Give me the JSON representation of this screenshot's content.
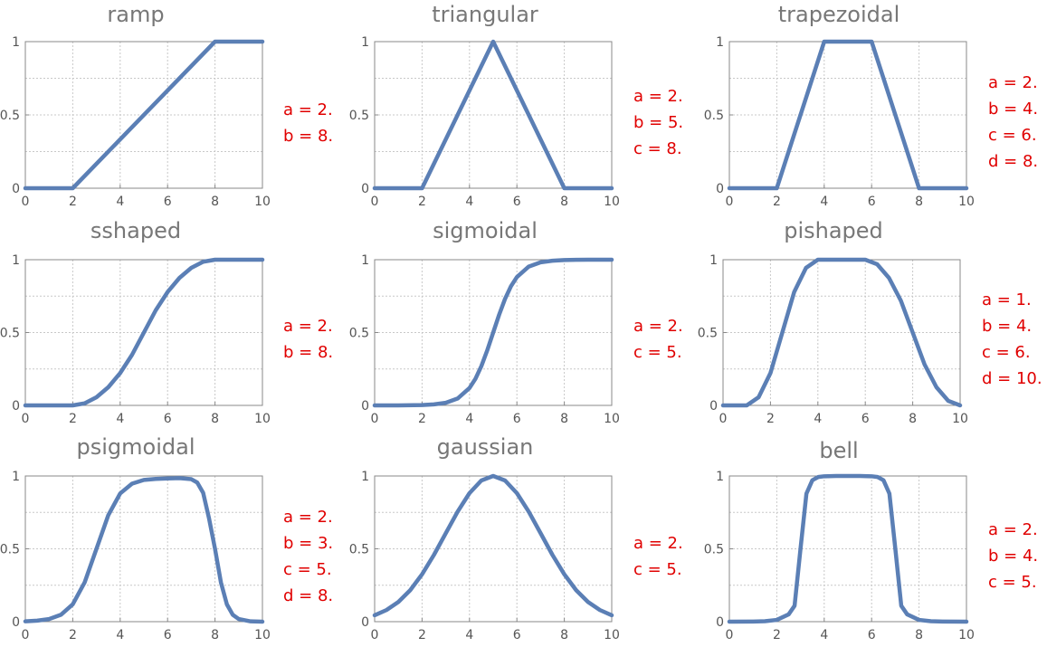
{
  "chart_data": [
    {
      "type": "line",
      "title": "ramp",
      "xlim": [
        0,
        10
      ],
      "ylim": [
        0,
        1
      ],
      "grid": true,
      "xticks": [
        "0",
        "2",
        "4",
        "6",
        "8",
        "10"
      ],
      "yticks": [
        "0",
        "0.5",
        "1"
      ],
      "series": [
        {
          "color": "#5b7fb5",
          "x": [
            0,
            2,
            8,
            10
          ],
          "y": [
            0,
            0,
            1,
            1
          ]
        }
      ],
      "params": [
        "a = 2.",
        "b = 8."
      ]
    },
    {
      "type": "line",
      "title": "triangular",
      "xlim": [
        0,
        10
      ],
      "ylim": [
        0,
        1
      ],
      "grid": true,
      "xticks": [
        "0",
        "2",
        "4",
        "6",
        "8",
        "10"
      ],
      "yticks": [
        "0",
        "0.5",
        "1"
      ],
      "series": [
        {
          "color": "#5b7fb5",
          "x": [
            0,
            2,
            5,
            8,
            10
          ],
          "y": [
            0,
            0,
            1,
            0,
            0
          ]
        }
      ],
      "params": [
        "a = 2.",
        "b = 5.",
        "c = 8."
      ]
    },
    {
      "type": "line",
      "title": "trapezoidal",
      "xlim": [
        0,
        10
      ],
      "ylim": [
        0,
        1
      ],
      "grid": true,
      "xticks": [
        "0",
        "2",
        "4",
        "6",
        "8",
        "10"
      ],
      "yticks": [
        "0",
        "0.5",
        "1"
      ],
      "series": [
        {
          "color": "#5b7fb5",
          "x": [
            0,
            2,
            4,
            6,
            8,
            10
          ],
          "y": [
            0,
            0,
            1,
            1,
            0,
            0
          ]
        }
      ],
      "params": [
        "a = 2.",
        "b = 4.",
        "c = 6.",
        "d = 8."
      ]
    },
    {
      "type": "line",
      "title": "sshaped",
      "xlim": [
        0,
        10
      ],
      "ylim": [
        0,
        1
      ],
      "grid": true,
      "xticks": [
        "0",
        "2",
        "4",
        "6",
        "8",
        "10"
      ],
      "yticks": [
        "0",
        "0.5",
        "1"
      ],
      "series": [
        {
          "color": "#5b7fb5",
          "x": [
            0,
            1,
            2,
            2.5,
            3,
            3.5,
            4,
            4.5,
            5,
            5.5,
            6,
            6.5,
            7,
            7.5,
            8,
            9,
            10
          ],
          "y": [
            0,
            0,
            0,
            0.014,
            0.056,
            0.125,
            0.222,
            0.347,
            0.5,
            0.653,
            0.778,
            0.875,
            0.944,
            0.986,
            1,
            1,
            1
          ]
        }
      ],
      "params": [
        "a = 2.",
        "b = 8."
      ]
    },
    {
      "type": "line",
      "title": "sigmoidal",
      "xlim": [
        0,
        10
      ],
      "ylim": [
        0,
        1
      ],
      "grid": true,
      "xticks": [
        "0",
        "2",
        "4",
        "6",
        "8",
        "10"
      ],
      "yticks": [
        "0",
        "0.5",
        "1"
      ],
      "series": [
        {
          "color": "#5b7fb5",
          "x": [
            0,
            1,
            2,
            2.5,
            3,
            3.5,
            4,
            4.25,
            4.5,
            4.75,
            5,
            5.25,
            5.5,
            5.75,
            6,
            6.5,
            7,
            7.5,
            8,
            9,
            10
          ],
          "y": [
            0,
            0,
            0.002,
            0.007,
            0.018,
            0.047,
            0.119,
            0.182,
            0.269,
            0.378,
            0.5,
            0.622,
            0.731,
            0.818,
            0.881,
            0.953,
            0.982,
            0.993,
            0.998,
            1,
            1
          ]
        }
      ],
      "params": [
        "a = 2.",
        "c = 5."
      ]
    },
    {
      "type": "line",
      "title": "pishaped",
      "xlim": [
        0,
        10
      ],
      "ylim": [
        0,
        1
      ],
      "grid": true,
      "xticks": [
        "0",
        "2",
        "4",
        "6",
        "8",
        "10"
      ],
      "yticks": [
        "0",
        "0.5",
        "1"
      ],
      "series": [
        {
          "color": "#5b7fb5",
          "x": [
            0,
            1,
            1.5,
            2,
            2.5,
            3,
            3.5,
            4,
            5,
            6,
            6.5,
            7,
            7.5,
            8,
            8.5,
            9,
            9.5,
            10
          ],
          "y": [
            0,
            0,
            0.056,
            0.222,
            0.5,
            0.778,
            0.944,
            1,
            1,
            1,
            0.969,
            0.875,
            0.719,
            0.5,
            0.281,
            0.125,
            0.031,
            0
          ]
        }
      ],
      "params": [
        "a = 1.",
        "b = 4.",
        "c = 6.",
        "d = 10."
      ]
    },
    {
      "type": "line",
      "title": "psigmoidal",
      "xlim": [
        0,
        10
      ],
      "ylim": [
        0,
        1
      ],
      "grid": true,
      "xticks": [
        "0",
        "2",
        "4",
        "6",
        "8",
        "10"
      ],
      "yticks": [
        "0",
        "0.5",
        "1"
      ],
      "series": [
        {
          "color": "#5b7fb5",
          "x": [
            0,
            0.5,
            1,
            1.5,
            2,
            2.5,
            3,
            3.5,
            4,
            4.5,
            5,
            5.5,
            6,
            6.5,
            7,
            7.25,
            7.5,
            7.75,
            8,
            8.25,
            8.5,
            8.75,
            9,
            9.5,
            10
          ],
          "y": [
            0.002,
            0.007,
            0.018,
            0.047,
            0.119,
            0.269,
            0.5,
            0.731,
            0.88,
            0.947,
            0.973,
            0.98,
            0.983,
            0.985,
            0.978,
            0.955,
            0.884,
            0.707,
            0.5,
            0.269,
            0.119,
            0.047,
            0.018,
            0.002,
            0
          ]
        }
      ],
      "params": [
        "a = 2.",
        "b = 3.",
        "c = 5.",
        "d = 8."
      ]
    },
    {
      "type": "line",
      "title": "gaussian",
      "xlim": [
        0,
        10
      ],
      "ylim": [
        0,
        1
      ],
      "grid": true,
      "xticks": [
        "0",
        "2",
        "4",
        "6",
        "8",
        "10"
      ],
      "yticks": [
        "0",
        "0.5",
        "1"
      ],
      "series": [
        {
          "color": "#5b7fb5",
          "x": [
            0,
            0.5,
            1,
            1.5,
            2,
            2.5,
            3,
            3.5,
            4,
            4.5,
            5,
            5.5,
            6,
            6.5,
            7,
            7.5,
            8,
            8.5,
            9,
            9.5,
            10
          ],
          "y": [
            0.044,
            0.08,
            0.135,
            0.216,
            0.325,
            0.458,
            0.607,
            0.755,
            0.882,
            0.969,
            1,
            0.969,
            0.882,
            0.755,
            0.607,
            0.458,
            0.325,
            0.216,
            0.135,
            0.08,
            0.044
          ]
        }
      ],
      "params": [
        "a = 2.",
        "c = 5."
      ]
    },
    {
      "type": "line",
      "title": "bell",
      "xlim": [
        0,
        10
      ],
      "ylim": [
        0,
        1
      ],
      "grid": true,
      "xticks": [
        "0",
        "2",
        "4",
        "6",
        "8",
        "10"
      ],
      "yticks": [
        "0",
        "0.5",
        "1"
      ],
      "series": [
        {
          "color": "#5b7fb5",
          "x": [
            0,
            1,
            1.5,
            2,
            2.5,
            2.75,
            3,
            3.25,
            3.5,
            3.75,
            4,
            4.5,
            5,
            5.5,
            6,
            6.25,
            6.5,
            6.75,
            7,
            7.25,
            7.5,
            8,
            8.5,
            9,
            10
          ],
          "y": [
            0,
            0.001,
            0.003,
            0.012,
            0.05,
            0.109,
            0.5,
            0.879,
            0.971,
            0.993,
            0.998,
            1,
            1,
            1,
            0.998,
            0.993,
            0.971,
            0.879,
            0.5,
            0.109,
            0.05,
            0.012,
            0.003,
            0.001,
            0
          ]
        }
      ],
      "params": [
        "a = 2.",
        "b = 4.",
        "c = 5."
      ]
    }
  ]
}
